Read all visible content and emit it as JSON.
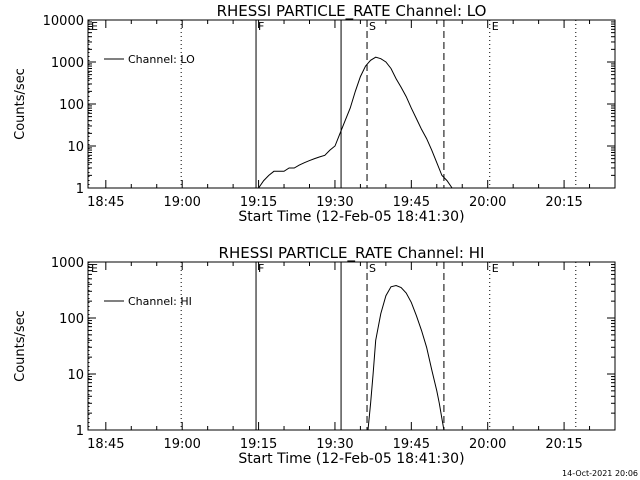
{
  "chart_data": [
    {
      "type": "line",
      "title": "RHESSI PARTICLE_RATE Channel: LO",
      "xlabel": "Start Time (12-Feb-05 18:41:30)",
      "ylabel": "Counts/sec",
      "y_scale": "log",
      "ylim": [
        1,
        10000
      ],
      "xlim_minutes": [
        -3.5,
        100.0
      ],
      "x_ticks": [
        "18:45",
        "19:00",
        "19:15",
        "19:30",
        "19:45",
        "20:00",
        "20:15"
      ],
      "x_tick_minutes": [
        0,
        15,
        30,
        45,
        60,
        75,
        90
      ],
      "y_ticks": [
        "1",
        "10",
        "100",
        "1000",
        "10000"
      ],
      "y_tick_values": [
        1,
        10,
        100,
        1000,
        10000
      ],
      "legend": "top-left",
      "series": [
        {
          "name": "Channel: LO",
          "x_minutes": [
            30,
            31,
            32,
            33,
            34,
            35,
            36,
            37,
            38,
            39,
            40,
            41,
            42,
            43,
            44,
            45,
            46,
            47,
            48,
            49,
            50,
            51,
            52,
            53,
            54,
            55,
            56,
            57,
            58,
            59,
            60,
            61,
            62,
            63,
            64,
            65,
            66,
            67,
            68,
            69,
            70
          ],
          "values": [
            1,
            1.5,
            2,
            2.5,
            2.5,
            2.5,
            3,
            3,
            3.5,
            4,
            4.5,
            5,
            5.5,
            6,
            8,
            10,
            20,
            40,
            80,
            200,
            450,
            800,
            1100,
            1300,
            1200,
            1000,
            700,
            400,
            250,
            150,
            80,
            45,
            25,
            15,
            8,
            4,
            2,
            1.5,
            1,
            1,
            1
          ]
        }
      ],
      "markers": [
        {
          "label": "E",
          "x_minutes": -3.3,
          "style": "dotted"
        },
        {
          "label": "",
          "x_minutes": 14.8,
          "style": "dotted"
        },
        {
          "label": "F",
          "x_minutes": 29.5,
          "style": "solid"
        },
        {
          "label": "",
          "x_minutes": 46.2,
          "style": "solid"
        },
        {
          "label": "S",
          "x_minutes": 51.3,
          "style": "dashed"
        },
        {
          "label": "",
          "x_minutes": 66.4,
          "style": "dashed"
        },
        {
          "label": "E",
          "x_minutes": 75.4,
          "style": "dotted"
        },
        {
          "label": "",
          "x_minutes": 92.3,
          "style": "dotted"
        }
      ]
    },
    {
      "type": "line",
      "title": "RHESSI PARTICLE_RATE Channel: HI",
      "xlabel": "Start Time (12-Feb-05 18:41:30)",
      "ylabel": "Counts/sec",
      "y_scale": "log",
      "ylim": [
        1,
        1000
      ],
      "xlim_minutes": [
        -3.5,
        100.0
      ],
      "x_ticks": [
        "18:45",
        "19:00",
        "19:15",
        "19:30",
        "19:45",
        "20:00",
        "20:15"
      ],
      "x_tick_minutes": [
        0,
        15,
        30,
        45,
        60,
        75,
        90
      ],
      "y_ticks": [
        "1",
        "10",
        "100",
        "1000"
      ],
      "y_tick_values": [
        1,
        10,
        100,
        1000
      ],
      "legend": "top-left",
      "series": [
        {
          "name": "Channel: HI",
          "x_minutes": [
            51.5,
            52,
            52.5,
            53,
            54,
            55,
            56,
            57,
            58,
            59,
            60,
            61,
            62,
            63,
            64,
            65,
            65.5,
            66,
            66.4
          ],
          "values": [
            1,
            3,
            10,
            40,
            120,
            250,
            360,
            380,
            350,
            280,
            190,
            110,
            60,
            30,
            12,
            5,
            3,
            1.6,
            1
          ]
        }
      ],
      "markers": [
        {
          "label": "E",
          "x_minutes": -3.3,
          "style": "dotted"
        },
        {
          "label": "",
          "x_minutes": 14.8,
          "style": "dotted"
        },
        {
          "label": "F",
          "x_minutes": 29.5,
          "style": "solid"
        },
        {
          "label": "",
          "x_minutes": 46.2,
          "style": "solid"
        },
        {
          "label": "S",
          "x_minutes": 51.3,
          "style": "dashed"
        },
        {
          "label": "",
          "x_minutes": 66.4,
          "style": "dashed"
        },
        {
          "label": "E",
          "x_minutes": 75.4,
          "style": "dotted"
        },
        {
          "label": "",
          "x_minutes": 92.3,
          "style": "dotted"
        }
      ]
    }
  ],
  "footer": {
    "timestamp": "14-Oct-2021 20:06"
  }
}
